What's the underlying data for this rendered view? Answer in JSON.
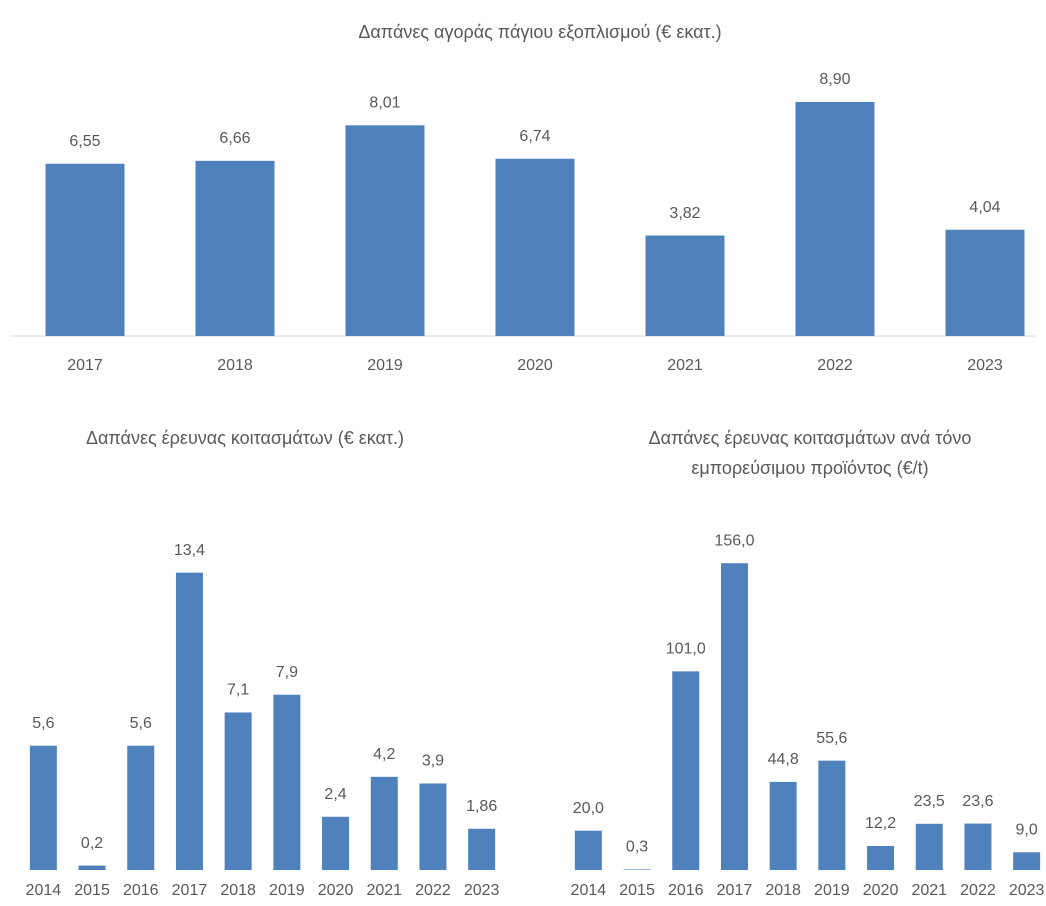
{
  "chart_data": [
    {
      "type": "bar",
      "title": "Δαπάνες αγοράς πάγιου εξοπλισμού (€ εκατ.)",
      "categories": [
        "2017",
        "2018",
        "2019",
        "2020",
        "2021",
        "2022",
        "2023"
      ],
      "values": [
        6.55,
        6.66,
        8.01,
        6.74,
        3.82,
        8.9,
        4.04
      ],
      "value_labels": [
        "6,55",
        "6,66",
        "8,01",
        "6,74",
        "3,82",
        "8,90",
        "4,04"
      ],
      "color": "#4f81bd",
      "ylim": [
        0,
        10
      ]
    },
    {
      "type": "bar",
      "title": "Δαπάνες έρευνας κοιτασμάτων (€ εκατ.)",
      "categories": [
        "2014",
        "2015",
        "2016",
        "2017",
        "2018",
        "2019",
        "2020",
        "2021",
        "2022",
        "2023"
      ],
      "values": [
        5.6,
        0.2,
        5.6,
        13.4,
        7.1,
        7.9,
        2.4,
        4.2,
        3.9,
        1.86
      ],
      "value_labels": [
        "5,6",
        "0,2",
        "5,6",
        "13,4",
        "7,1",
        "7,9",
        "2,4",
        "4,2",
        "3,9",
        "1,86"
      ],
      "color": "#4f81bd",
      "ylim": [
        0,
        16
      ]
    },
    {
      "type": "bar",
      "title": "Δαπάνες έρευνας κοιτασμάτων ανά τόνο εμπορεύσιμου προϊόντος (€/t)",
      "categories": [
        "2014",
        "2015",
        "2016",
        "2017",
        "2018",
        "2019",
        "2020",
        "2021",
        "2022",
        "2023"
      ],
      "values": [
        20.0,
        0.3,
        101.0,
        156.0,
        44.8,
        55.6,
        12.2,
        23.5,
        23.6,
        9.0
      ],
      "value_labels": [
        "20,0",
        "0,3",
        "101,0",
        "156,0",
        "44,8",
        "55,6",
        "12,2",
        "23,5",
        "23,6",
        "9,0"
      ],
      "color": "#4f81bd",
      "ylim": [
        0,
        180
      ]
    }
  ]
}
